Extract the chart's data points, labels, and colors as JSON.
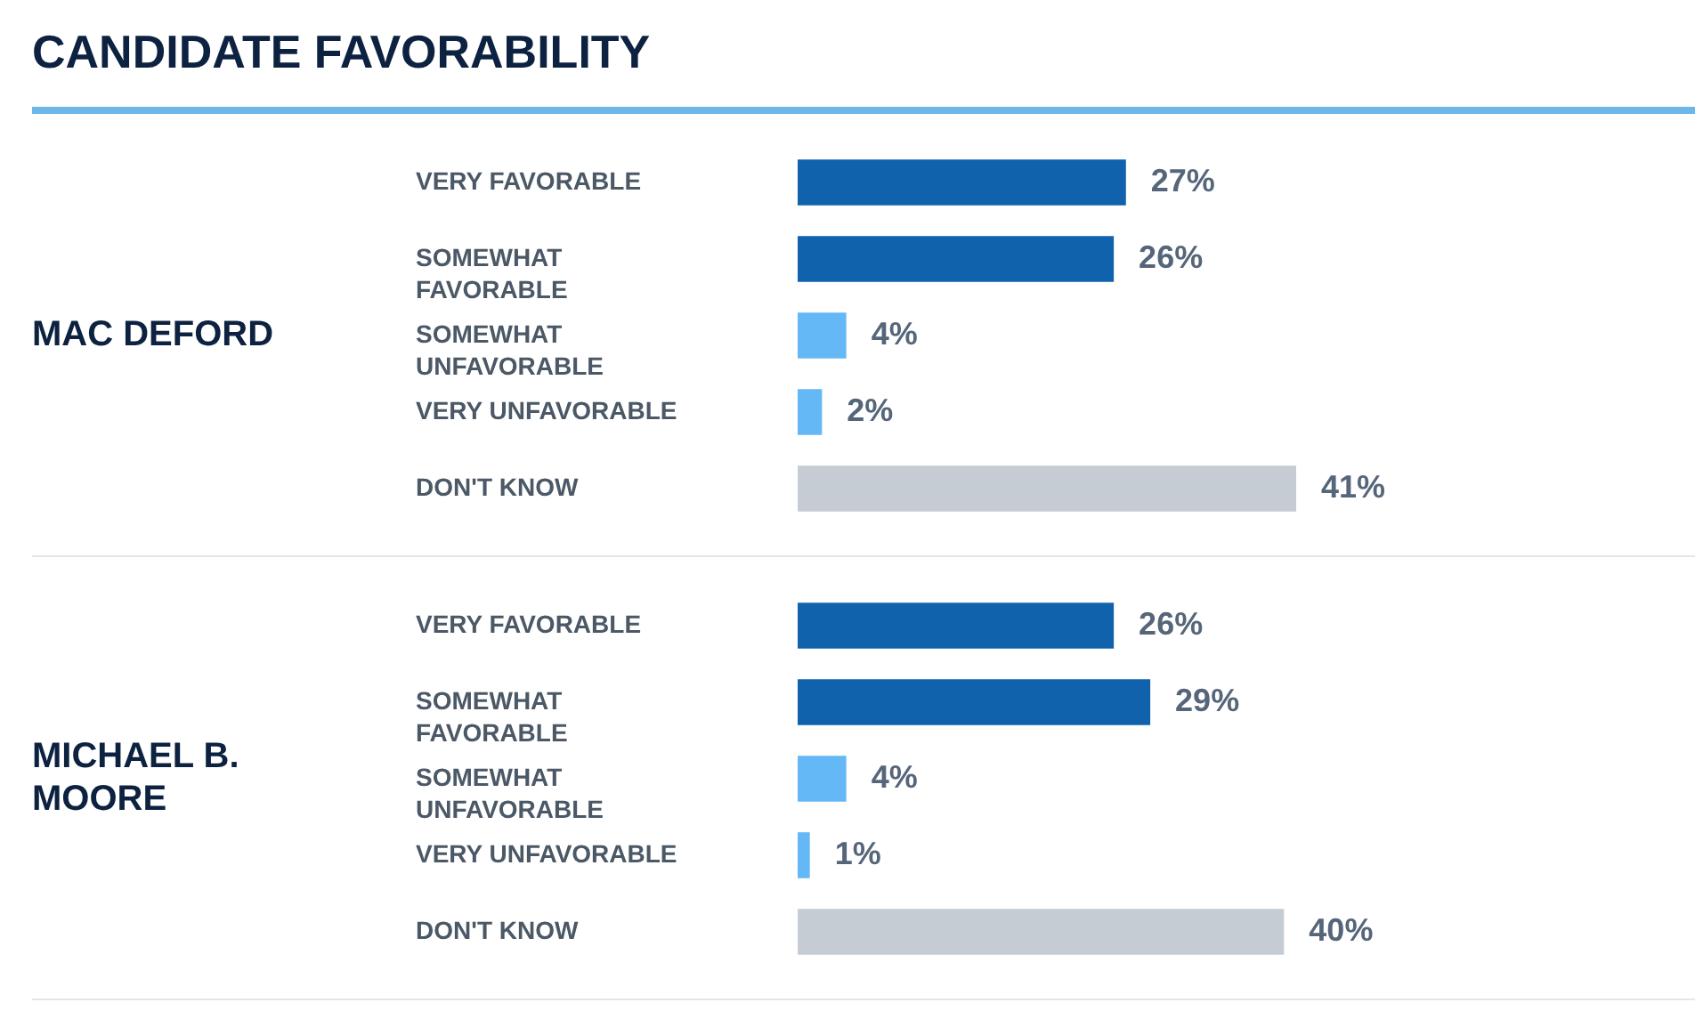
{
  "chart_data": [
    {
      "type": "bar",
      "orientation": "horizontal",
      "title": "CANDIDATE FAVORABILITY",
      "ylabel": "MAC DEFORD",
      "categories": [
        "VERY FAVORABLE",
        "SOMEWHAT\nFAVORABLE",
        "SOMEWHAT\nUNFAVORABLE",
        "VERY UNFAVORABLE",
        "DON'T KNOW"
      ],
      "values": [
        27,
        26,
        4,
        2,
        41
      ],
      "colors": [
        "#0f62ab",
        "#0f62ab",
        "#63b8f5",
        "#63b8f5",
        "#c5ccd3"
      ],
      "value_labels": [
        "27%",
        "26%",
        "4%",
        "2%",
        "41%"
      ]
    },
    {
      "type": "bar",
      "orientation": "horizontal",
      "ylabel": "MICHAEL B. MOORE",
      "categories": [
        "VERY FAVORABLE",
        "SOMEWHAT\nFAVORABLE",
        "SOMEWHAT\nUNFAVORABLE",
        "VERY UNFAVORABLE",
        "DON'T KNOW"
      ],
      "values": [
        26,
        29,
        4,
        1,
        40
      ],
      "colors": [
        "#0f62ab",
        "#0f62ab",
        "#63b8f5",
        "#63b8f5",
        "#c5ccd3"
      ],
      "value_labels": [
        "26%",
        "29%",
        "4%",
        "1%",
        "40%"
      ]
    }
  ]
}
